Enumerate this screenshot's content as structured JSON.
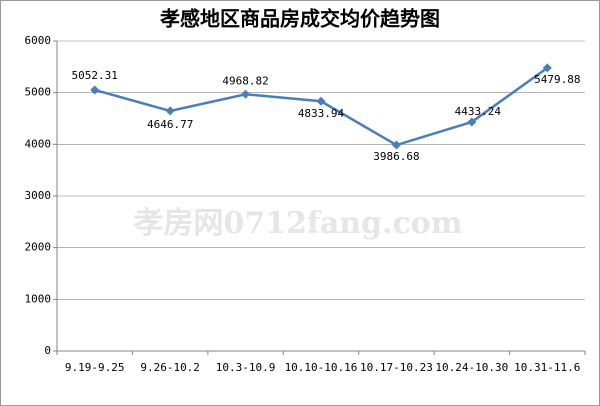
{
  "chart_data": {
    "type": "line",
    "title": "孝感地区商品房成交均价趋势图",
    "watermark": "孝房网0712fang.com",
    "categories": [
      "9.19-9.25",
      "9.26-10.2",
      "10.3-10.9",
      "10.10-10.16",
      "10.17-10.23",
      "10.24-10.30",
      "10.31-11.6"
    ],
    "values": [
      5052.31,
      4646.77,
      4968.82,
      4833.94,
      3986.68,
      4433.24,
      5479.88
    ],
    "color": "#4a7ebb",
    "ylim": [
      0,
      6000
    ],
    "yticks": [
      0,
      1000,
      2000,
      3000,
      4000,
      5000,
      6000
    ],
    "grid": true
  }
}
